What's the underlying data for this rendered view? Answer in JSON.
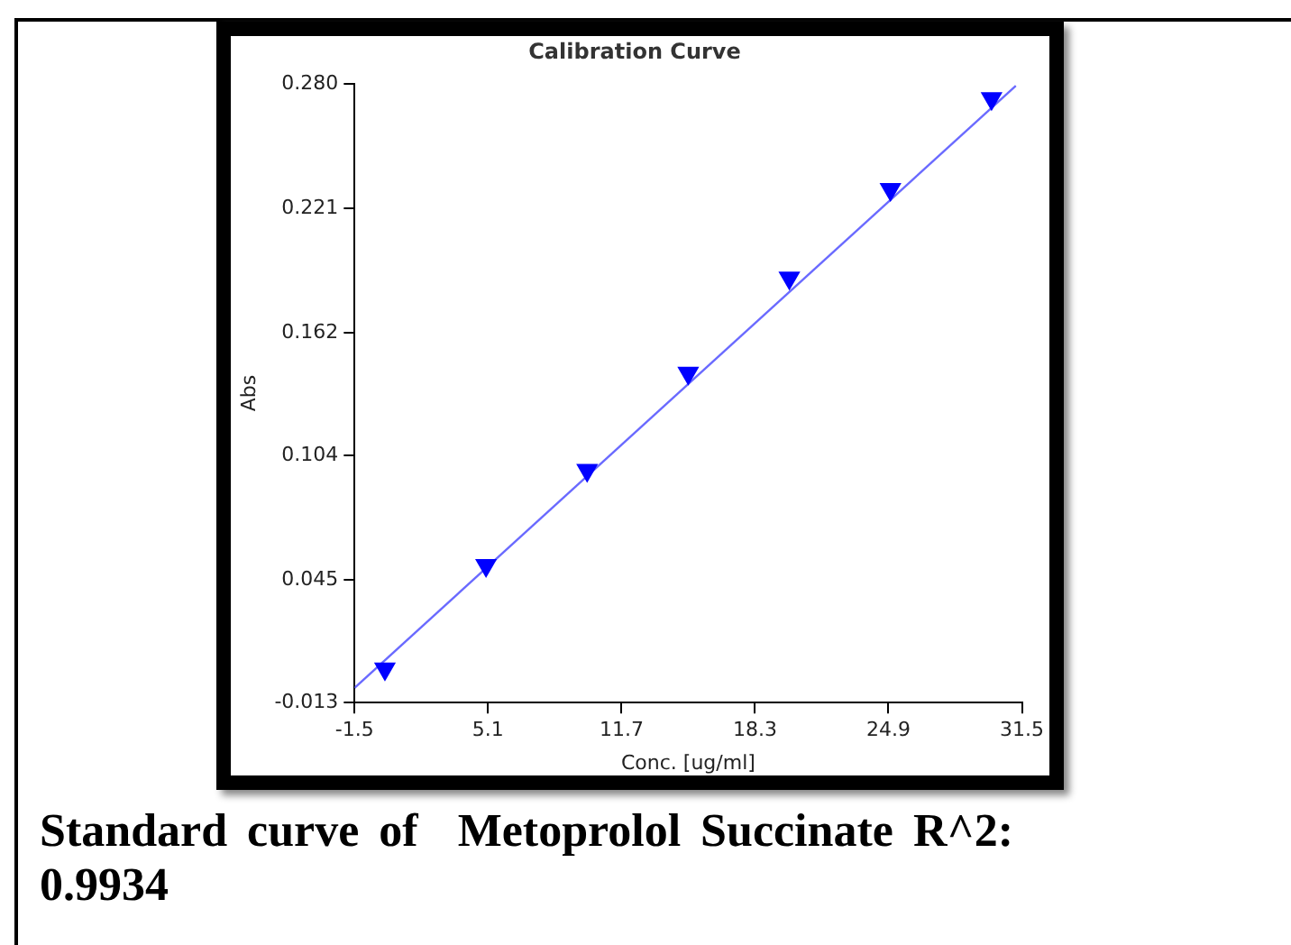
{
  "chart_data": {
    "type": "scatter",
    "title": "Calibration Curve",
    "xlabel": "Conc. [ug/ml]",
    "ylabel": "Abs",
    "xlim": [
      -1.5,
      31.5
    ],
    "xticks": [
      -1.5,
      5.1,
      11.7,
      18.3,
      24.9,
      31.5
    ],
    "ylim": [
      -0.013,
      0.28
    ],
    "yticks": [
      -0.013,
      0.045,
      0.104,
      0.162,
      0.221,
      {
        "value": 0.28,
        "label": "0.280"
      }
    ],
    "series": [
      {
        "type": "line",
        "color": "#6a6aff",
        "x": [
          -1.5,
          31.2
        ],
        "values": [
          -0.006,
          0.279
        ],
        "marker": "none"
      },
      {
        "type": "scatter",
        "color": "#0000ff",
        "x": [
          0,
          5,
          10,
          15,
          20,
          25,
          30
        ],
        "values": [
          0.003,
          0.052,
          0.097,
          0.143,
          0.188,
          0.23,
          0.273
        ],
        "marker": "triangle"
      }
    ],
    "grid": false,
    "legend": false,
    "annotations": [
      "Standard curve of  Metoprolol Succinate R^2: 0.9934"
    ]
  }
}
